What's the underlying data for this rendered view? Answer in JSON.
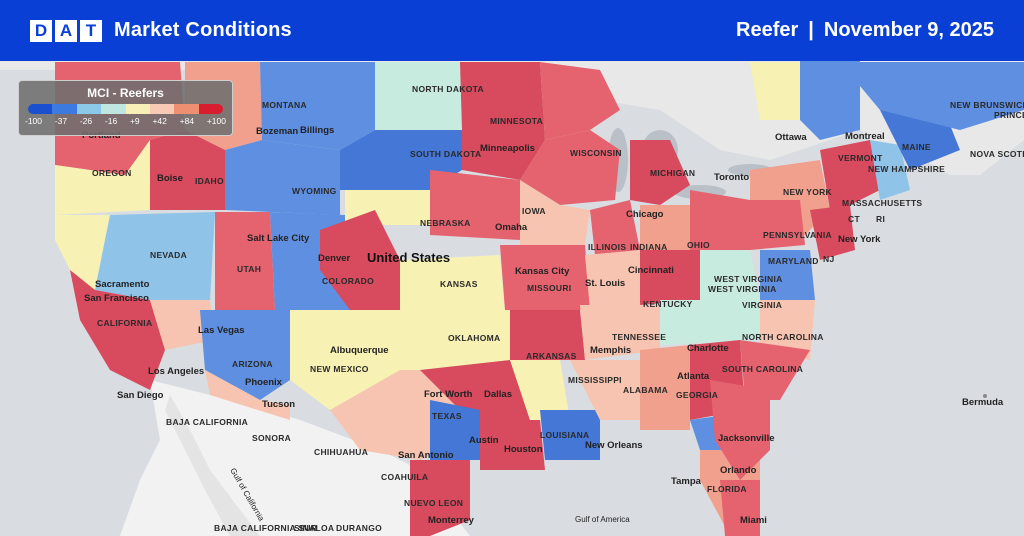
{
  "header": {
    "brand_letters": [
      "D",
      "A",
      "T"
    ],
    "product_title": "Market Conditions",
    "equipment": "Reefer",
    "separator": "|",
    "date": "November 9, 2025"
  },
  "legend": {
    "title": "MCI - Reefers",
    "ticks": [
      "-100",
      "-37",
      "-26",
      "-16",
      "+9",
      "+42",
      "+84",
      "+100"
    ],
    "colors": [
      "#1a4fd0",
      "#3d7ae0",
      "#8cc8e8",
      "#bfe6e0",
      "#f8efb8",
      "#f8c9b4",
      "#ef8f72",
      "#d81d2f"
    ]
  },
  "palette": {
    "dark_red": "#d84a5e",
    "red": "#e5636f",
    "light_red": "#f1a08e",
    "salmon": "#f6c4b0",
    "yellow": "#f8f1b4",
    "pale_teal": "#c8ebe0",
    "light_blue": "#8fc3e8",
    "blue": "#5f8fe0",
    "deep_blue": "#4477d6",
    "land": "#f2f2f2",
    "water": "#d9dde2",
    "canada": "#e8e8e8"
  },
  "map": {
    "country_label": "United States",
    "regions": [
      "MONTANA",
      "NORTH DAKOTA",
      "MINNESOTA",
      "OREGON",
      "IDAHO",
      "WYOMING",
      "SOUTH DAKOTA",
      "WISCONSIN",
      "MICHIGAN",
      "NEBRASKA",
      "IOWA",
      "NEVADA",
      "UTAH",
      "COLORADO",
      "KANSAS",
      "ILLINOIS",
      "INDIANA",
      "OHIO",
      "MISSOURI",
      "CALIFORNIA",
      "KENTUCKY",
      "WEST VIRGINIA",
      "VIRGINIA",
      "OKLAHOMA",
      "TENNESSEE",
      "NORTH CAROLINA",
      "ARIZONA",
      "NEW MEXICO",
      "ARKANSAS",
      "SOUTH CAROLINA",
      "MISSISSIPPI",
      "ALABAMA",
      "GEORGIA",
      "TEXAS",
      "LOUISIANA",
      "FLORIDA",
      "PENNSYLVANIA",
      "NEW YORK",
      "MARYLAND",
      "NJ",
      "VERMONT",
      "NEW HAMPSHIRE",
      "MASSACHUSETTS",
      "CT",
      "RI",
      "MAINE",
      "NEW BRUNSWICK",
      "NOVA SCOTIA",
      "PRINCE EDWARD ISLAND",
      "BAJA CALIFORNIA",
      "SONORA",
      "CHIHUAHUA",
      "COAHUILA",
      "NUEVO LEON",
      "SINALOA",
      "DURANGO",
      "BAJA CALIFORNIA SUR"
    ],
    "cities": [
      "Portland",
      "Bozeman",
      "Billings",
      "Boise",
      "Minneapolis",
      "Salt Lake City",
      "Sacramento",
      "San Francisco",
      "Denver",
      "Omaha",
      "Chicago",
      "Kansas City",
      "St. Louis",
      "Cincinnati",
      "Toronto",
      "Ottawa",
      "Montreal",
      "New York",
      "Las Vegas",
      "Los Angeles",
      "San Diego",
      "Phoenix",
      "Tucson",
      "Albuquerque",
      "Memphis",
      "Charlotte",
      "Atlanta",
      "Fort Worth",
      "Dallas",
      "Austin",
      "Houston",
      "San Antonio",
      "New Orleans",
      "Jacksonville",
      "Orlando",
      "Tampa",
      "Miami",
      "Monterrey",
      "Bermuda"
    ],
    "water_labels": [
      "Gulf of California",
      "Gulf of America"
    ]
  }
}
